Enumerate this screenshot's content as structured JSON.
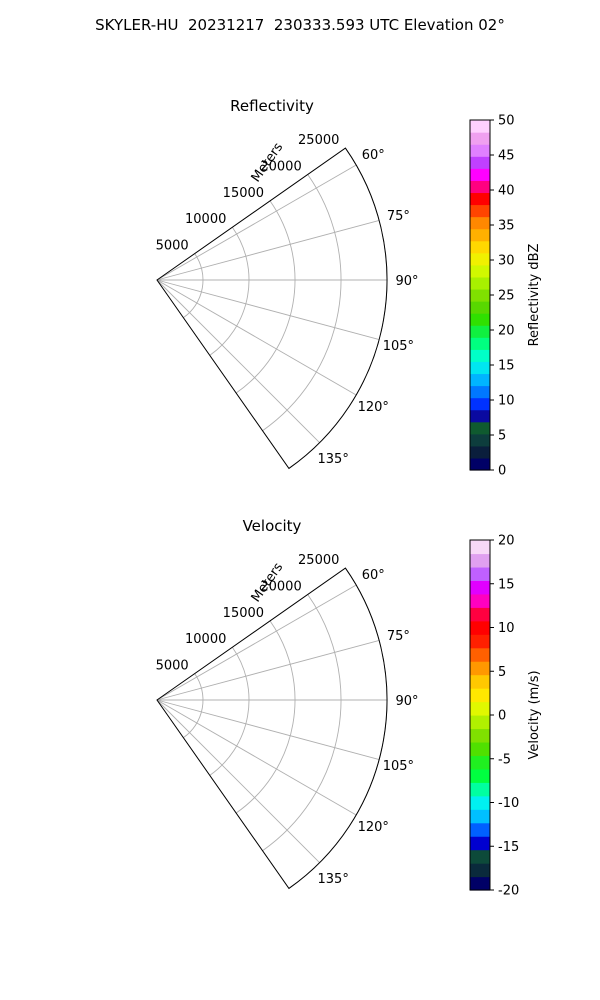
{
  "suptitle": "SKYLER-HU  20231217  230333.593 UTC Elevation 02°",
  "chart_data": [
    {
      "type": "polar-sector",
      "title": "Reflectivity",
      "radial_label": "Meters",
      "radial_ticks": [
        5000,
        10000,
        15000,
        20000,
        25000
      ],
      "rmax": 25000,
      "angular_ticks": [
        "60°",
        "75°",
        "90°",
        "105°",
        "120°",
        "135°"
      ],
      "theta_range_deg": [
        55,
        145
      ],
      "grid": true,
      "colorbar": {
        "label": "Reflectivity dBZ",
        "min": 0,
        "max": 50,
        "ticks": [
          0,
          5,
          10,
          15,
          20,
          25,
          30,
          35,
          40,
          45,
          50
        ],
        "colors": [
          "#000066",
          "#0a1e3c",
          "#0d3d3d",
          "#0f5a2f",
          "#0a0aa0",
          "#0032ff",
          "#0078ff",
          "#00b4ff",
          "#00e6f0",
          "#00ffc8",
          "#00ff80",
          "#10f040",
          "#30e000",
          "#58d800",
          "#80e000",
          "#a8f000",
          "#d0f800",
          "#f0f000",
          "#ffd800",
          "#ffb000",
          "#ff8800",
          "#ff4400",
          "#ff0000",
          "#ff0080",
          "#ff00ff",
          "#c040ff",
          "#e080ff",
          "#f0a0f0",
          "#ffd0ff"
        ]
      }
    },
    {
      "type": "polar-sector",
      "title": "Velocity",
      "radial_label": "Meters",
      "radial_ticks": [
        5000,
        10000,
        15000,
        20000,
        25000
      ],
      "rmax": 25000,
      "angular_ticks": [
        "60°",
        "75°",
        "90°",
        "105°",
        "120°",
        "135°"
      ],
      "theta_range_deg": [
        55,
        145
      ],
      "grid": true,
      "colorbar": {
        "label": "Velocity (m/s)",
        "min": -20,
        "max": 20,
        "ticks": [
          -20,
          -15,
          -10,
          -5,
          0,
          5,
          10,
          15,
          20
        ],
        "colors": [
          "#000066",
          "#0a2a3c",
          "#0d4a3a",
          "#0000d0",
          "#0060ff",
          "#00c0ff",
          "#00f0f0",
          "#00ffa0",
          "#00ff40",
          "#20f020",
          "#50e000",
          "#80e000",
          "#b0f000",
          "#e0f800",
          "#ffe800",
          "#ffc800",
          "#ff9800",
          "#ff6000",
          "#ff2000",
          "#ff0000",
          "#ff0040",
          "#ff00c0",
          "#e000ff",
          "#c060ff",
          "#e0a0f0",
          "#f8d8f8"
        ]
      }
    }
  ],
  "colors": {
    "grid": "#b0b0b0",
    "axis": "#000000"
  }
}
